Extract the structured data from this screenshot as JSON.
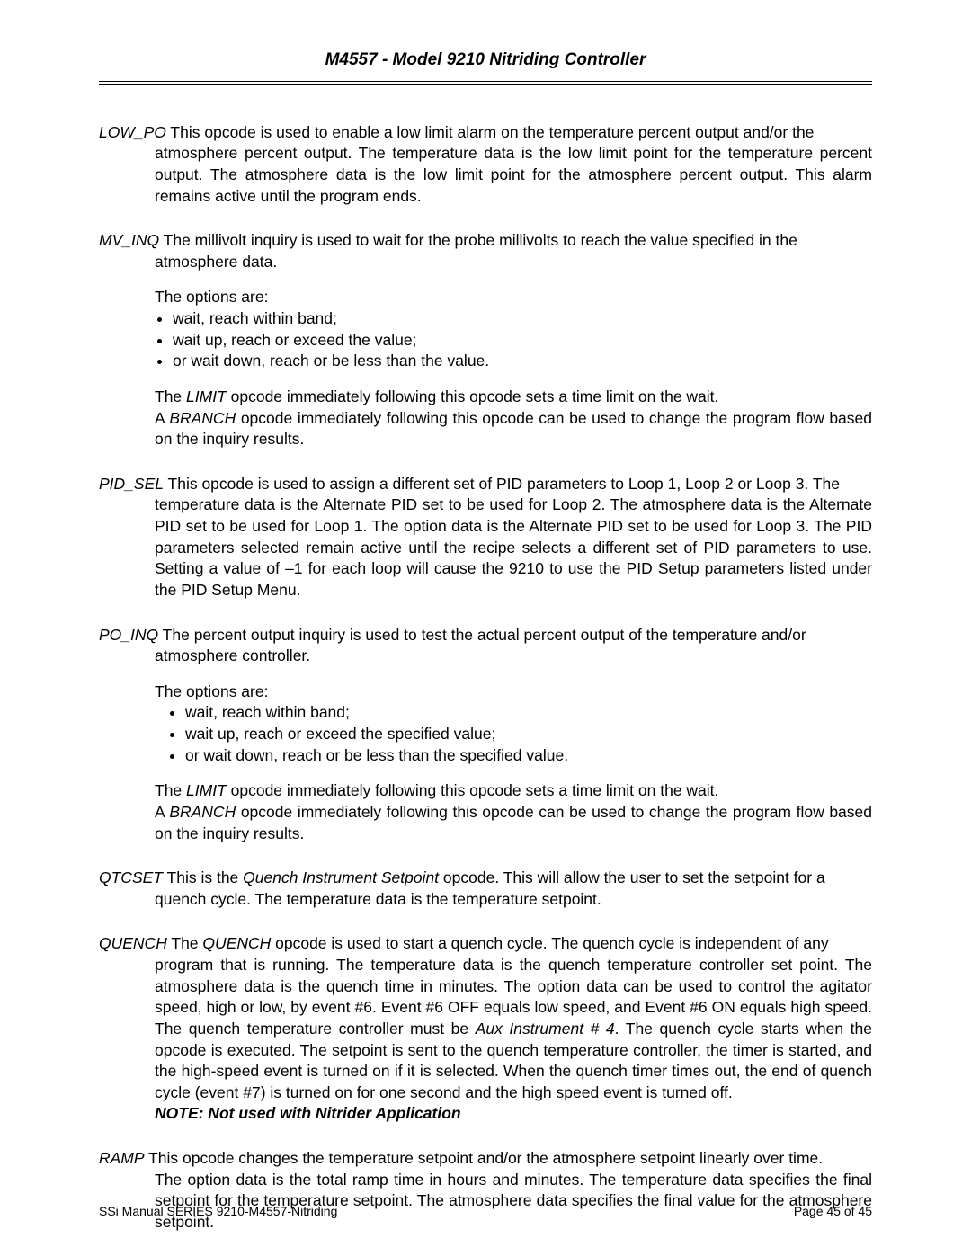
{
  "header": {
    "title": "M4557 - Model 9210 Nitriding Controller"
  },
  "opcodes": {
    "low_po": {
      "name": "LOW_PO",
      "desc_lead": "  This opcode is used to enable a low limit alarm on the temperature percent output and/or the",
      "desc_rest": "atmosphere percent output.  The temperature data is the low limit point for the temperature percent output.  The atmosphere data is the low limit point for the atmosphere percent output.  This alarm remains active until the program ends."
    },
    "mv_inq": {
      "name": "MV_INQ",
      "desc_lead": "  The millivolt inquiry is used to wait for the probe millivolts to reach the value specified in the",
      "desc_rest": "atmosphere data.",
      "options_label": "The options are:",
      "options": [
        "wait, reach within band;",
        "wait up, reach or exceed the value;",
        "or wait down, reach or be less than the value."
      ],
      "tail1a": "The ",
      "tail1b": "LIMIT",
      "tail1c": " opcode immediately following this opcode sets a time limit on the wait.",
      "tail2a": "A ",
      "tail2b": "BRANCH",
      "tail2c": " opcode immediately following this opcode can be used to change the program flow based on the inquiry results."
    },
    "pid_sel": {
      "name": "PID_SEL",
      "desc_lead": "  This opcode is used to assign a different set of PID parameters to Loop 1, Loop 2 or Loop 3.  The",
      "desc_rest": "temperature data is the Alternate PID set to be used for Loop 2.  The atmosphere data is the Alternate PID set to be used for Loop 1.  The option data is the Alternate PID set to be used for Loop 3.  The PID parameters selected remain active until the recipe selects a different set of PID parameters to use.  Setting a value of –1 for each loop will cause the 9210 to use the PID Setup parameters listed under the PID Setup Menu."
    },
    "po_inq": {
      "name": "PO_INQ",
      "desc_lead": "  The percent output inquiry is used to test the actual percent output of the temperature  and/or",
      "desc_rest": "atmosphere controller.",
      "options_label": "The options are:",
      "options": [
        "wait, reach within band;",
        "wait up, reach or exceed the specified value;",
        "or wait down, reach or be less than the specified value."
      ],
      "tail1a": "The ",
      "tail1b": "LIMIT",
      "tail1c": " opcode immediately following this opcode sets a time limit on the wait.",
      "tail2a": "A ",
      "tail2b": "BRANCH",
      "tail2c": " opcode immediately following this opcode can be used to change the program flow based on the inquiry results."
    },
    "qtcset": {
      "name": "QTCSET",
      "desc_lead_a": " This is the ",
      "desc_lead_b": "Quench Instrument Setpoint",
      "desc_lead_c": " opcode.  This will allow the user to set the setpoint for a",
      "desc_rest": "quench cycle.  The temperature data is the temperature setpoint."
    },
    "quench": {
      "name": "QUENCH",
      "desc_lead_a": "  The ",
      "desc_lead_b": "QUENCH",
      "desc_lead_c": " opcode is used to start a quench cycle.  The quench cycle is independent of any",
      "desc_rest_a": "program that is running.  The temperature data is the quench temperature controller set point.  The atmosphere data is the quench time in minutes.  The option data can be used to control the agitator speed, high or low, by event #6.  Event #6 OFF equals low speed, and Event #6 ON equals high speed.  The quench temperature controller must be ",
      "desc_rest_b": "Aux Instrument # 4",
      "desc_rest_c": ".  The quench cycle starts when the opcode is executed. The setpoint is sent to the quench temperature controller, the timer is started, and the high-speed event is turned on if it is selected.  When the quench timer times out, the end of quench cycle (event #7) is turned on for one second and the high speed event is turned off.",
      "note": "NOTE: Not used with Nitrider Application"
    },
    "ramp": {
      "name": "RAMP",
      "desc_lead": "  This opcode changes the temperature setpoint and/or the atmosphere setpoint linearly over time.",
      "desc_rest": "The option data is the total ramp time in hours and minutes.  The temperature data specifies the final setpoint for the temperature setpoint.  The atmosphere data specifies the final value for the atmosphere setpoint."
    }
  },
  "footer": {
    "left": "SSi Manual SERIES 9210-M4557-Nitriding",
    "right": "Page 45 of 45"
  }
}
